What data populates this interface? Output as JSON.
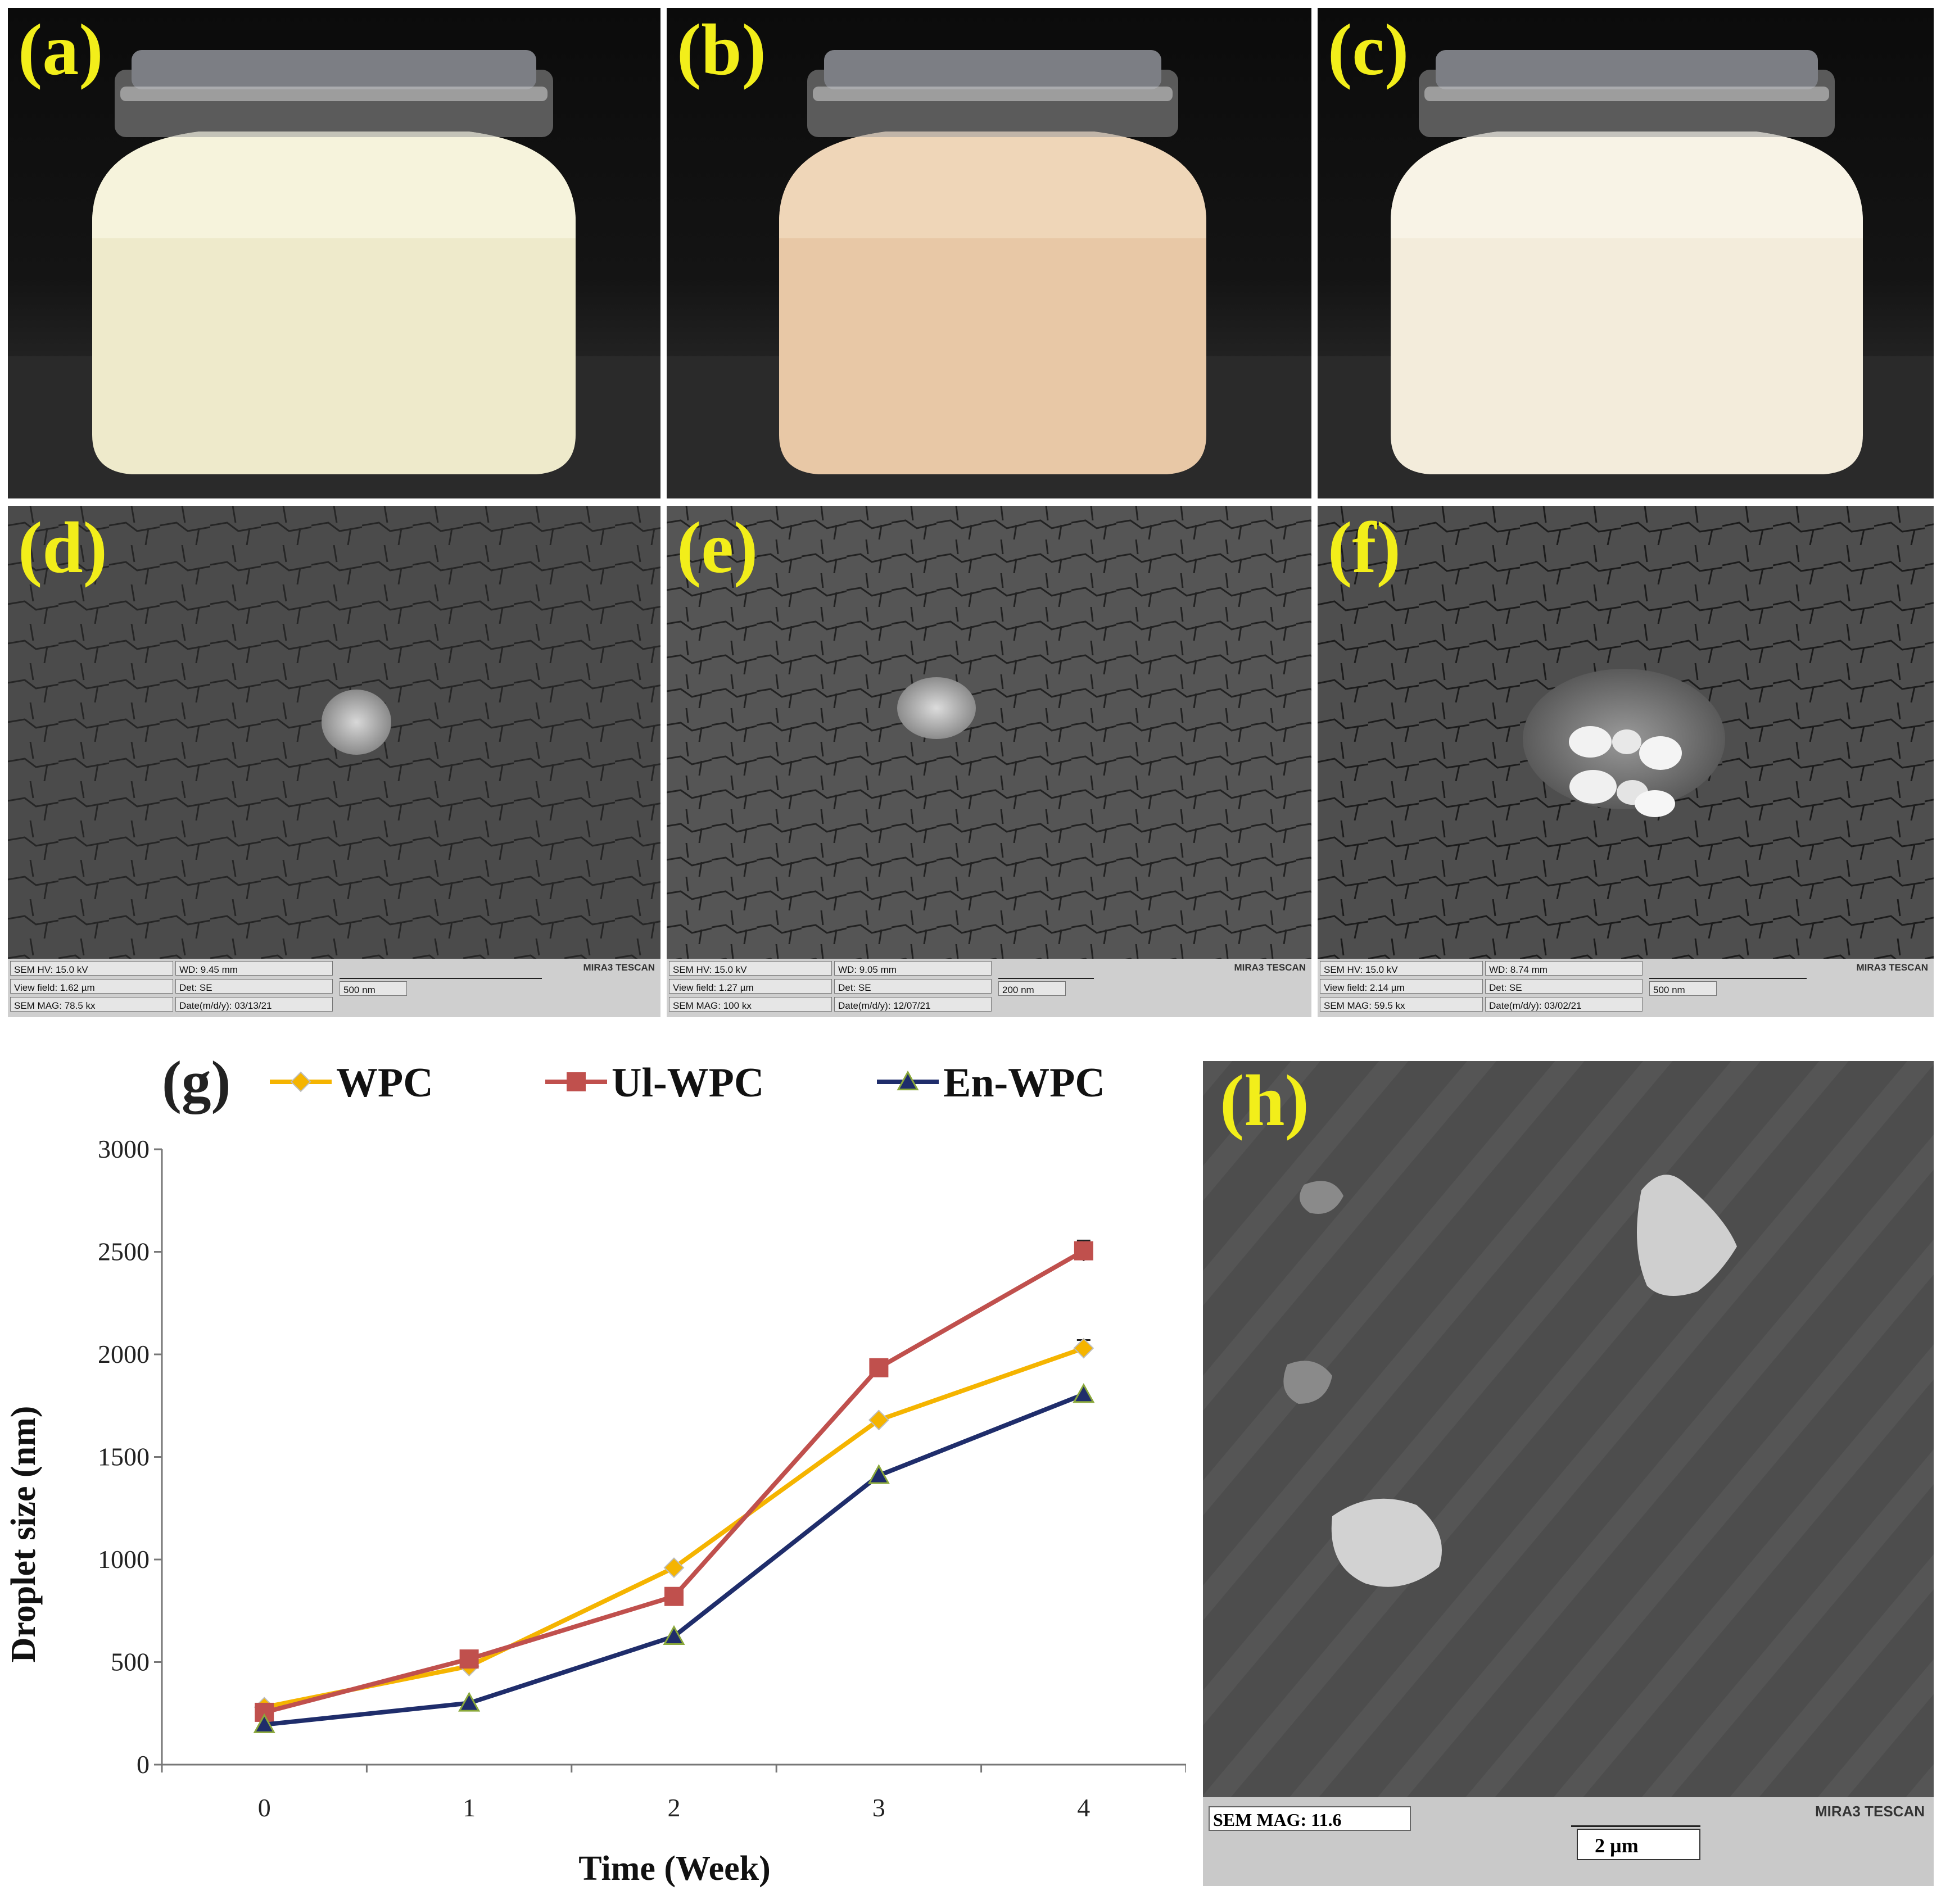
{
  "panels": {
    "a": {
      "label": "(a)"
    },
    "b": {
      "label": "(b)"
    },
    "c": {
      "label": "(c)"
    },
    "d": {
      "label": "(d)",
      "sem": {
        "hv": "SEM HV: 15.0 kV",
        "wd": "WD: 9.45 mm",
        "view_field": "View field: 1.62 µm",
        "det": "Det: SE",
        "scale": "500 nm",
        "mag": "SEM MAG: 78.5 kx",
        "date": "Date(m/d/y): 03/13/21",
        "brand": "MIRA3 TESCAN"
      }
    },
    "e": {
      "label": "(e)",
      "sem": {
        "hv": "SEM HV: 15.0 kV",
        "wd": "WD: 9.05 mm",
        "view_field": "View field: 1.27 µm",
        "det": "Det: SE",
        "scale": "200 nm",
        "mag": "SEM MAG: 100 kx",
        "date": "Date(m/d/y): 12/07/21",
        "brand": "MIRA3 TESCAN"
      }
    },
    "f": {
      "label": "(f)",
      "sem": {
        "hv": "SEM HV: 15.0 kV",
        "wd": "WD: 8.74 mm",
        "view_field": "View field: 2.14 µm",
        "det": "Det: SE",
        "scale": "500 nm",
        "mag": "SEM MAG: 59.5 kx",
        "date": "Date(m/d/y): 03/02/21",
        "brand": "MIRA3 TESCAN"
      }
    },
    "g": {
      "label": "(g)"
    },
    "h": {
      "label": "(h)",
      "sem": {
        "mag": "SEM MAG: 11.6",
        "scale": "2 µm",
        "brand": "MIRA3 TESCAN"
      }
    }
  },
  "colors": {
    "panel_letter": "#f2ee1a",
    "wpc": "#f5b400",
    "ul_wpc": "#c0504d",
    "en_wpc": "#1f2d6b"
  },
  "chart_data": {
    "type": "line",
    "xlabel": "Time (Week)",
    "ylabel": "Droplet size (nm)",
    "x": [
      0,
      1,
      2,
      3,
      4
    ],
    "ylim": [
      0,
      3000
    ],
    "yticks": [
      0,
      500,
      1000,
      1500,
      2000,
      2500,
      3000
    ],
    "grid": false,
    "legend_position": "top",
    "series": [
      {
        "name": "WPC",
        "marker": "diamond",
        "values": [
          280,
          480,
          960,
          1680,
          2030
        ],
        "errors": [
          0,
          0,
          0,
          0,
          40
        ]
      },
      {
        "name": "Ul-WPC",
        "marker": "square",
        "values": [
          255,
          515,
          820,
          1935,
          2505
        ],
        "errors": [
          0,
          0,
          0,
          0,
          50
        ]
      },
      {
        "name": "En-WPC",
        "marker": "triangle",
        "values": [
          195,
          300,
          625,
          1410,
          1805
        ],
        "errors": [
          0,
          0,
          0,
          0,
          0
        ]
      }
    ]
  }
}
